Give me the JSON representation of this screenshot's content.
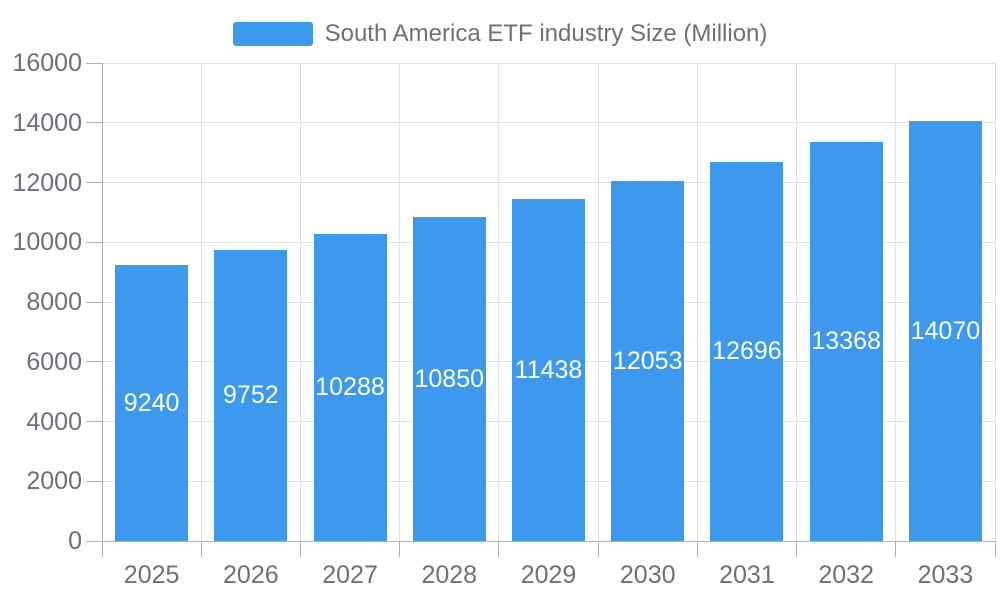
{
  "legend": {
    "label": "South America ETF industry Size (Million)"
  },
  "chart_data": {
    "type": "bar",
    "title": "South America ETF industry Size (Million)",
    "categories": [
      "2025",
      "2026",
      "2027",
      "2028",
      "2029",
      "2030",
      "2031",
      "2032",
      "2033"
    ],
    "values": [
      9240,
      9752,
      10288,
      10850,
      11438,
      12053,
      12696,
      13368,
      14070
    ],
    "series": [
      {
        "name": "South America ETF industry Size (Million)",
        "values": [
          9240,
          9752,
          10288,
          10850,
          11438,
          12053,
          12696,
          13368,
          14070
        ]
      }
    ],
    "xlabel": "",
    "ylabel": "",
    "ylim": [
      0,
      16000
    ],
    "ytick_step": 2000,
    "yticks": [
      0,
      2000,
      4000,
      6000,
      8000,
      10000,
      12000,
      14000,
      16000
    ],
    "grid": true,
    "legend_position": "top-center",
    "value_label_position": "inside-center",
    "colors": {
      "bar": "#3C99EE",
      "axis_label": "#6E7079",
      "legend_text": "#6E7079",
      "value_label": "#FFFFFF",
      "grid_line": "#E3E3E3",
      "axis_line": "#B3B3B3",
      "background": "#FFFFFF"
    }
  }
}
